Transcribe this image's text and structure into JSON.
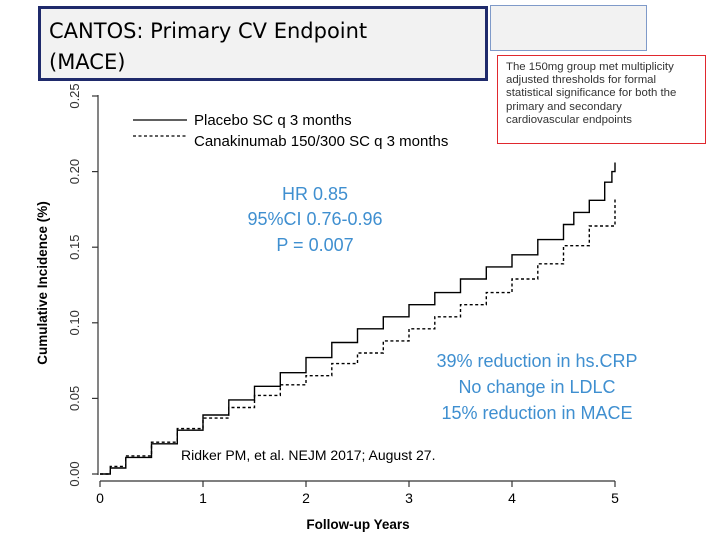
{
  "slide": {
    "title_line1": "CANTOS: Primary CV Endpoint",
    "title_line2": "(MACE)",
    "note": "The 150mg group met multiplicity adjusted thresholds for formal statistical significance for both the primary and secondary cardiovascular endpoints"
  },
  "annotations": {
    "hr": "HR 0.85",
    "ci": "95%CI 0.76-0.96",
    "p": "P = 0.007",
    "reduction_crp": "39% reduction in hs.CRP",
    "ldlc": "No change in LDLC",
    "reduction_mace": "15% reduction in MACE",
    "reference_author": "Ridker PM, et al",
    "reference_rest": ". NEJM 2017; August 27."
  },
  "colors": {
    "accent_blue": "#3f8fd0",
    "note_border": "#e0282e",
    "title_border": "#1f2a6b"
  },
  "chart_data": {
    "type": "line",
    "title": "",
    "xlabel": "Follow-up Years",
    "ylabel": "Cumulative Incidence (%)",
    "xlim": [
      0,
      5
    ],
    "ylim": [
      0,
      0.25
    ],
    "xticks": [
      "0",
      "1",
      "2",
      "3",
      "4",
      "5"
    ],
    "yticks": [
      "0.00",
      "0.05",
      "0.10",
      "0.15",
      "0.20",
      "0.25"
    ],
    "grid": false,
    "legend_position": "top-left",
    "series": [
      {
        "name": "Placebo SC q 3 months",
        "style": "solid",
        "x": [
          0,
          0.1,
          0.25,
          0.5,
          0.75,
          1.0,
          1.25,
          1.5,
          1.75,
          2.0,
          2.25,
          2.5,
          2.75,
          3.0,
          3.25,
          3.5,
          3.75,
          4.0,
          4.25,
          4.5,
          4.6,
          4.75,
          4.9,
          4.97,
          5.0
        ],
        "y": [
          0,
          0.004,
          0.011,
          0.02,
          0.029,
          0.039,
          0.049,
          0.058,
          0.067,
          0.077,
          0.087,
          0.096,
          0.104,
          0.112,
          0.12,
          0.129,
          0.137,
          0.145,
          0.155,
          0.165,
          0.173,
          0.181,
          0.193,
          0.2,
          0.206
        ]
      },
      {
        "name": "Canakinumab 150/300 SC q 3 months",
        "style": "dashed",
        "x": [
          0,
          0.1,
          0.25,
          0.5,
          0.75,
          1.0,
          1.25,
          1.5,
          1.75,
          2.0,
          2.25,
          2.5,
          2.75,
          3.0,
          3.25,
          3.5,
          3.75,
          4.0,
          4.25,
          4.5,
          4.75,
          5.0
        ],
        "y": [
          0,
          0.005,
          0.012,
          0.021,
          0.03,
          0.037,
          0.044,
          0.052,
          0.059,
          0.065,
          0.073,
          0.08,
          0.088,
          0.096,
          0.104,
          0.112,
          0.12,
          0.129,
          0.139,
          0.151,
          0.164,
          0.183
        ]
      }
    ]
  }
}
